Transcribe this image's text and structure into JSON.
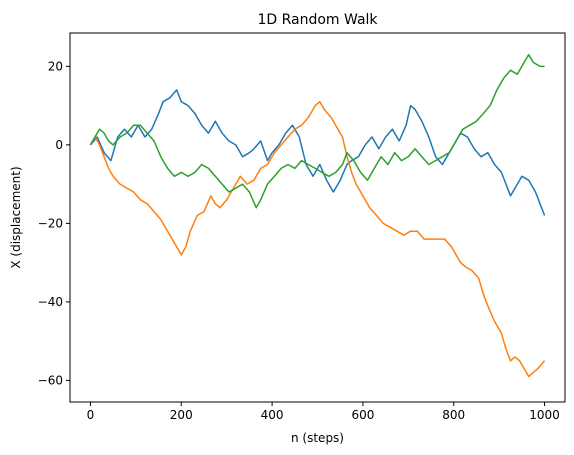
{
  "chart_data": {
    "type": "line",
    "title": "1D Random Walk",
    "xlabel": "n (steps)",
    "ylabel": "X (displacement)",
    "xlim": [
      -45,
      1045
    ],
    "ylim": [
      -65.5,
      28.5
    ],
    "xticks": [
      0,
      200,
      400,
      600,
      800,
      1000
    ],
    "yticks": [
      -60,
      -40,
      -20,
      0,
      20
    ],
    "grid": false,
    "legend": "none",
    "series": [
      {
        "color": "#1f77b4",
        "points": [
          [
            0,
            0
          ],
          [
            15,
            2
          ],
          [
            30,
            -2
          ],
          [
            45,
            -4
          ],
          [
            60,
            2
          ],
          [
            75,
            4
          ],
          [
            90,
            2
          ],
          [
            105,
            5
          ],
          [
            120,
            2
          ],
          [
            135,
            4
          ],
          [
            150,
            8
          ],
          [
            160,
            11
          ],
          [
            175,
            12
          ],
          [
            190,
            14
          ],
          [
            200,
            11
          ],
          [
            215,
            10
          ],
          [
            230,
            8
          ],
          [
            245,
            5
          ],
          [
            260,
            3
          ],
          [
            275,
            6
          ],
          [
            290,
            3
          ],
          [
            305,
            1
          ],
          [
            320,
            0
          ],
          [
            335,
            -3
          ],
          [
            350,
            -2
          ],
          [
            360,
            -1
          ],
          [
            375,
            1
          ],
          [
            390,
            -4
          ],
          [
            400,
            -2
          ],
          [
            415,
            0
          ],
          [
            430,
            3
          ],
          [
            445,
            5
          ],
          [
            460,
            2
          ],
          [
            475,
            -5
          ],
          [
            490,
            -8
          ],
          [
            505,
            -5
          ],
          [
            520,
            -9
          ],
          [
            535,
            -12
          ],
          [
            550,
            -9
          ],
          [
            565,
            -5
          ],
          [
            575,
            -4
          ],
          [
            590,
            -3
          ],
          [
            605,
            0
          ],
          [
            620,
            2
          ],
          [
            635,
            -1
          ],
          [
            650,
            2
          ],
          [
            665,
            4
          ],
          [
            680,
            1
          ],
          [
            695,
            5
          ],
          [
            705,
            10
          ],
          [
            715,
            9
          ],
          [
            730,
            6
          ],
          [
            745,
            2
          ],
          [
            760,
            -3
          ],
          [
            775,
            -5
          ],
          [
            790,
            -2
          ],
          [
            805,
            1
          ],
          [
            815,
            3
          ],
          [
            830,
            2
          ],
          [
            845,
            -1
          ],
          [
            860,
            -3
          ],
          [
            875,
            -2
          ],
          [
            890,
            -5
          ],
          [
            905,
            -7
          ],
          [
            915,
            -10
          ],
          [
            925,
            -13
          ],
          [
            935,
            -11
          ],
          [
            950,
            -8
          ],
          [
            965,
            -9
          ],
          [
            980,
            -12
          ],
          [
            990,
            -15
          ],
          [
            1000,
            -18
          ]
        ]
      },
      {
        "color": "#ff7f0e",
        "points": [
          [
            0,
            0
          ],
          [
            10,
            2
          ],
          [
            20,
            0
          ],
          [
            30,
            -3
          ],
          [
            40,
            -6
          ],
          [
            50,
            -8
          ],
          [
            65,
            -10
          ],
          [
            80,
            -11
          ],
          [
            95,
            -12
          ],
          [
            110,
            -14
          ],
          [
            125,
            -15
          ],
          [
            140,
            -17
          ],
          [
            155,
            -19
          ],
          [
            170,
            -22
          ],
          [
            185,
            -25
          ],
          [
            200,
            -28
          ],
          [
            210,
            -26
          ],
          [
            220,
            -22
          ],
          [
            235,
            -18
          ],
          [
            250,
            -17
          ],
          [
            265,
            -13
          ],
          [
            275,
            -15
          ],
          [
            285,
            -16
          ],
          [
            300,
            -14
          ],
          [
            315,
            -11
          ],
          [
            330,
            -8
          ],
          [
            345,
            -10
          ],
          [
            360,
            -9
          ],
          [
            375,
            -6
          ],
          [
            390,
            -5
          ],
          [
            405,
            -2
          ],
          [
            420,
            0
          ],
          [
            435,
            2
          ],
          [
            450,
            4
          ],
          [
            465,
            5
          ],
          [
            480,
            7
          ],
          [
            495,
            10
          ],
          [
            505,
            11
          ],
          [
            515,
            9
          ],
          [
            530,
            7
          ],
          [
            545,
            4
          ],
          [
            555,
            2
          ],
          [
            565,
            -3
          ],
          [
            575,
            -7
          ],
          [
            585,
            -10
          ],
          [
            600,
            -13
          ],
          [
            615,
            -16
          ],
          [
            630,
            -18
          ],
          [
            645,
            -20
          ],
          [
            660,
            -21
          ],
          [
            675,
            -22
          ],
          [
            690,
            -23
          ],
          [
            705,
            -22
          ],
          [
            720,
            -22
          ],
          [
            735,
            -24
          ],
          [
            750,
            -24
          ],
          [
            765,
            -24
          ],
          [
            780,
            -24
          ],
          [
            795,
            -26
          ],
          [
            805,
            -28
          ],
          [
            815,
            -30
          ],
          [
            825,
            -31
          ],
          [
            840,
            -32
          ],
          [
            855,
            -34
          ],
          [
            865,
            -38
          ],
          [
            875,
            -41
          ],
          [
            890,
            -45
          ],
          [
            905,
            -48
          ],
          [
            915,
            -52
          ],
          [
            925,
            -55
          ],
          [
            935,
            -54
          ],
          [
            945,
            -55
          ],
          [
            955,
            -57
          ],
          [
            965,
            -59
          ],
          [
            975,
            -58
          ],
          [
            985,
            -57
          ],
          [
            1000,
            -55
          ]
        ]
      },
      {
        "color": "#2ca02c",
        "points": [
          [
            0,
            0
          ],
          [
            10,
            2
          ],
          [
            20,
            4
          ],
          [
            30,
            3
          ],
          [
            40,
            1
          ],
          [
            50,
            0
          ],
          [
            65,
            2
          ],
          [
            80,
            3
          ],
          [
            95,
            5
          ],
          [
            110,
            5
          ],
          [
            125,
            3
          ],
          [
            140,
            1
          ],
          [
            155,
            -3
          ],
          [
            170,
            -6
          ],
          [
            185,
            -8
          ],
          [
            200,
            -7
          ],
          [
            215,
            -8
          ],
          [
            230,
            -7
          ],
          [
            245,
            -5
          ],
          [
            260,
            -6
          ],
          [
            275,
            -8
          ],
          [
            290,
            -10
          ],
          [
            305,
            -12
          ],
          [
            320,
            -11
          ],
          [
            335,
            -10
          ],
          [
            350,
            -12
          ],
          [
            365,
            -16
          ],
          [
            375,
            -14
          ],
          [
            390,
            -10
          ],
          [
            405,
            -8
          ],
          [
            420,
            -6
          ],
          [
            435,
            -5
          ],
          [
            450,
            -6
          ],
          [
            465,
            -4
          ],
          [
            480,
            -5
          ],
          [
            495,
            -6
          ],
          [
            510,
            -7
          ],
          [
            525,
            -8
          ],
          [
            540,
            -7
          ],
          [
            555,
            -5
          ],
          [
            565,
            -2
          ],
          [
            580,
            -4
          ],
          [
            595,
            -7
          ],
          [
            610,
            -9
          ],
          [
            625,
            -6
          ],
          [
            640,
            -3
          ],
          [
            655,
            -5
          ],
          [
            670,
            -2
          ],
          [
            685,
            -4
          ],
          [
            700,
            -3
          ],
          [
            715,
            -1
          ],
          [
            730,
            -3
          ],
          [
            745,
            -5
          ],
          [
            760,
            -4
          ],
          [
            775,
            -3
          ],
          [
            790,
            -2
          ],
          [
            805,
            1
          ],
          [
            820,
            4
          ],
          [
            835,
            5
          ],
          [
            850,
            6
          ],
          [
            865,
            8
          ],
          [
            880,
            10
          ],
          [
            895,
            14
          ],
          [
            910,
            17
          ],
          [
            925,
            19
          ],
          [
            940,
            18
          ],
          [
            955,
            21
          ],
          [
            965,
            23
          ],
          [
            975,
            21
          ],
          [
            990,
            20
          ],
          [
            1000,
            20
          ]
        ]
      }
    ]
  }
}
